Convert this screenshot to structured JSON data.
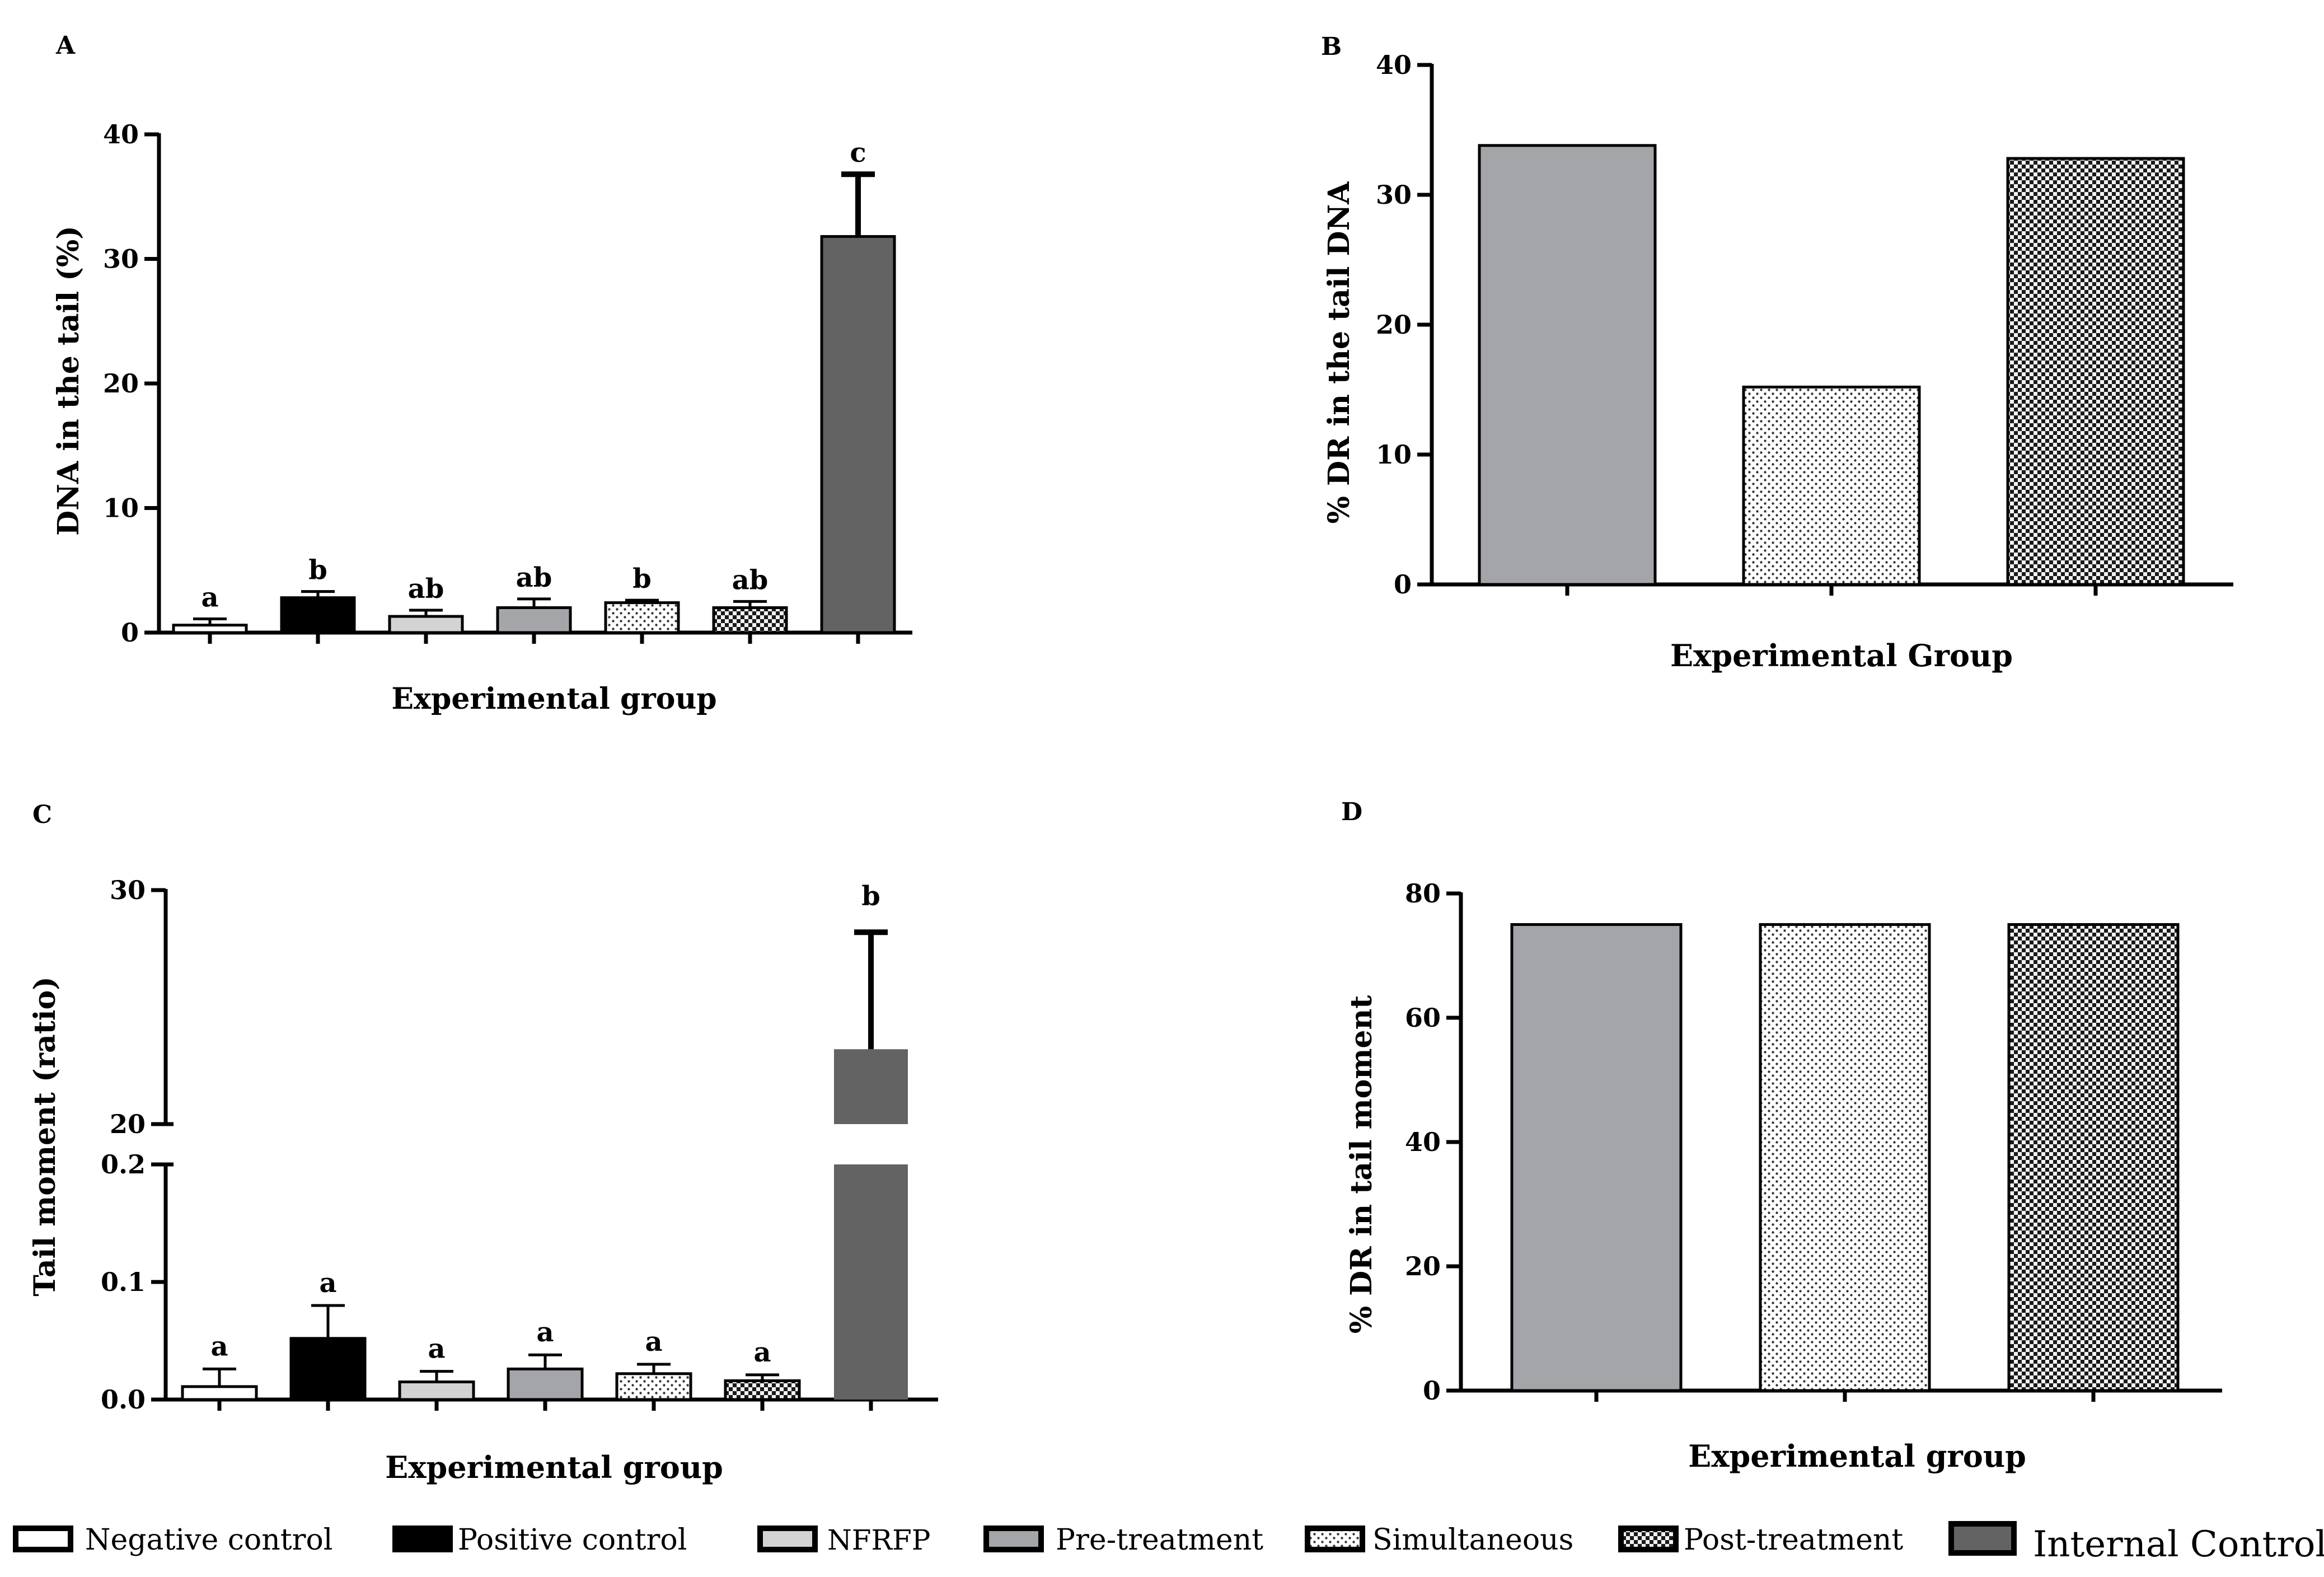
{
  "colors": {
    "negative": "#ffffff",
    "positive": "#000000",
    "nfrfp": "#d3d3d3",
    "pre": "#a4a5a8",
    "internal": "#636363",
    "axis": "#000000"
  },
  "legend": {
    "items": [
      {
        "label": "Negative control",
        "fill": "negative"
      },
      {
        "label": "Positive control",
        "fill": "positive"
      },
      {
        "label": "NFRFP",
        "fill": "nfrfp"
      },
      {
        "label": "Pre-treatment",
        "fill": "pre"
      },
      {
        "label": "Simultaneous",
        "fill": "dots"
      },
      {
        "label": "Post-treatment",
        "fill": "checker"
      },
      {
        "label": "Internal Control",
        "fill": "internal"
      }
    ]
  },
  "chart_data": [
    {
      "panel": "A",
      "type": "bar",
      "xlabel": "Experimental group",
      "ylabel": "DNA in the tail (%)",
      "ylim": [
        0,
        40
      ],
      "yticks": [
        "0",
        "10",
        "20",
        "30",
        "40"
      ],
      "categories": [
        "Negative control",
        "Positive control",
        "NFRFP",
        "Pre-treatment",
        "Simultaneous",
        "Post-treatment",
        "Internal Control"
      ],
      "values": [
        0.6,
        2.8,
        1.3,
        2.0,
        2.4,
        2.0,
        31.8
      ],
      "errors": [
        0.5,
        0.5,
        0.5,
        0.7,
        0.2,
        0.5,
        5.0
      ],
      "letters": [
        "a",
        "b",
        "ab",
        "ab",
        "b",
        "ab",
        "c"
      ],
      "fills": [
        "negative",
        "positive",
        "nfrfp",
        "pre",
        "dots",
        "checker",
        "internal"
      ]
    },
    {
      "panel": "B",
      "type": "bar",
      "xlabel": "Experimental Group",
      "ylabel": "% DR in the tail DNA",
      "ylim": [
        0,
        40
      ],
      "yticks": [
        "0",
        "10",
        "20",
        "30",
        "40"
      ],
      "categories": [
        "Pre-treatment",
        "Simultaneous",
        "Post-treatment"
      ],
      "values": [
        33.8,
        15.2,
        32.8
      ],
      "fills": [
        "pre",
        "dots",
        "checker"
      ]
    },
    {
      "panel": "C",
      "type": "bar",
      "xlabel": "Experimental group",
      "ylabel": "Tail moment (ratio)",
      "broken_axis": {
        "lower": [
          0,
          0.2
        ],
        "upper": [
          20,
          30
        ]
      },
      "yticks_lower": [
        "0.0",
        "0.1",
        "0.2"
      ],
      "yticks_upper": [
        "20",
        "30"
      ],
      "categories": [
        "Negative control",
        "Positive control",
        "NFRFP",
        "Pre-treatment",
        "Simultaneous",
        "Post-treatment",
        "Internal Control"
      ],
      "values": [
        0.011,
        0.052,
        0.015,
        0.026,
        0.022,
        0.016,
        23.2
      ],
      "errors": [
        0.015,
        0.028,
        0.009,
        0.012,
        0.008,
        0.005,
        5.0
      ],
      "letters": [
        "a",
        "a",
        "a",
        "a",
        "a",
        "a",
        "b"
      ],
      "fills": [
        "negative",
        "positive",
        "nfrfp",
        "pre",
        "dots",
        "checker",
        "internal"
      ]
    },
    {
      "panel": "D",
      "type": "bar",
      "xlabel": "Experimental group",
      "ylabel": "% DR in tail moment",
      "ylim": [
        0,
        80
      ],
      "yticks": [
        "0",
        "20",
        "40",
        "60",
        "80"
      ],
      "categories": [
        "Pre-treatment",
        "Simultaneous",
        "Post-treatment"
      ],
      "values": [
        75,
        75,
        75
      ],
      "fills": [
        "pre",
        "dots",
        "checker"
      ]
    }
  ]
}
